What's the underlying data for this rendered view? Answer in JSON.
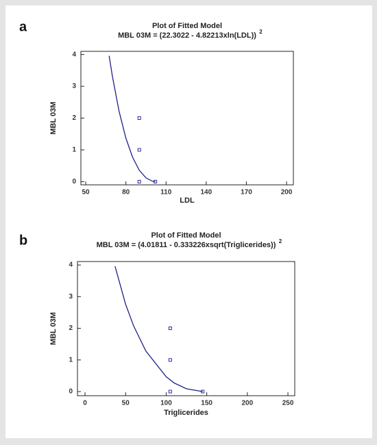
{
  "chart_data": [
    {
      "type": "scatter",
      "panel_label": "a",
      "title": "Plot of Fitted Model",
      "subtitle": "MBL 03M = (22.3022 - 4.82213xln(LDL))",
      "subtitle_superscript": "2",
      "x_label": "LDL",
      "y_label": "MBL 03M",
      "xlim": [
        46.4,
        205.1
      ],
      "ylim": [
        -0.1,
        4.1
      ],
      "xticks": [
        50,
        80,
        110,
        140,
        170,
        200
      ],
      "yticks": [
        0,
        1,
        2,
        3,
        4
      ],
      "series": [
        {
          "type": "scatter",
          "color": "#2b2ba6",
          "x": [
            90,
            90,
            90,
            102
          ],
          "values": [
            2,
            1,
            0,
            0
          ]
        },
        {
          "type": "line",
          "color": "#1f1f8a",
          "x": [
            67.5,
            70,
            75,
            80,
            85,
            90,
            95,
            100,
            102
          ],
          "values": [
            3.96,
            3.3,
            2.2,
            1.37,
            0.77,
            0.36,
            0.12,
            0.01,
            0
          ]
        }
      ]
    },
    {
      "type": "scatter",
      "panel_label": "b",
      "title": "Plot of Fitted Model",
      "subtitle": "MBL 03M = (4.01811 - 0.333226xsqrt(Triglicerides))",
      "subtitle_superscript": "2",
      "x_label": "Triglicerides",
      "y_label": "MBL 03M",
      "xlim": [
        -9.3,
        258.4
      ],
      "ylim": [
        -0.13,
        4.11
      ],
      "xticks": [
        0,
        50,
        100,
        150,
        200,
        250
      ],
      "yticks": [
        0,
        1,
        2,
        3,
        4
      ],
      "series": [
        {
          "type": "scatter",
          "color": "#2b2ba6",
          "x": [
            105,
            105,
            105,
            145
          ],
          "values": [
            2,
            1,
            0,
            0
          ]
        },
        {
          "type": "line",
          "color": "#1f1f8a",
          "x": [
            37,
            50,
            60,
            75,
            100,
            110,
            125,
            145
          ],
          "values": [
            3.96,
            2.76,
            2.07,
            1.28,
            0.47,
            0.27,
            0.09,
            0
          ]
        }
      ]
    }
  ]
}
